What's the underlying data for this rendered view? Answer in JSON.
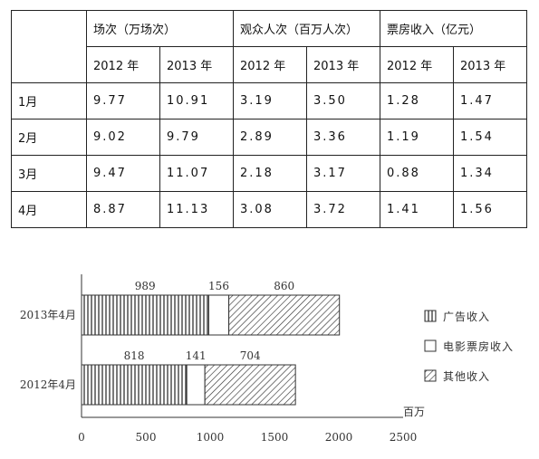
{
  "table": {
    "groups": [
      "场次（万场次）",
      "观众人次（百万人次）",
      "票房收入（亿元）"
    ],
    "years": [
      "2012 年",
      "2013 年",
      "2012 年",
      "2013 年",
      "2012 年",
      "2013 年"
    ],
    "rows": [
      {
        "month": "1月",
        "values": [
          "9.77",
          "10.91",
          "3.19",
          "3.50",
          "1.28",
          "1.47"
        ]
      },
      {
        "month": "2月",
        "values": [
          "9.02",
          "9.79",
          "2.89",
          "3.36",
          "1.19",
          "1.54"
        ]
      },
      {
        "month": "3月",
        "values": [
          "9.47",
          "11.07",
          "2.18",
          "3.17",
          "0.88",
          "1.34"
        ]
      },
      {
        "month": "4月",
        "values": [
          "8.87",
          "11.13",
          "3.08",
          "3.72",
          "1.41",
          "1.56"
        ]
      }
    ]
  },
  "chart_data": {
    "type": "bar",
    "orientation": "horizontal",
    "stacked": true,
    "categories": [
      "2013年4月",
      "2012年4月"
    ],
    "series": [
      {
        "name": "广告收入",
        "values": [
          989,
          818
        ],
        "pattern": "vertical-lines"
      },
      {
        "name": "电影票房收入",
        "values": [
          156,
          141
        ],
        "pattern": "solid-white"
      },
      {
        "name": "其他收入",
        "values": [
          860,
          704
        ],
        "pattern": "diagonal-lines"
      }
    ],
    "xlim": [
      0,
      2500
    ],
    "xticks": [
      0,
      500,
      1000,
      1500,
      2000,
      2500
    ],
    "unit_label": "百万",
    "legend_position": "right",
    "colors": {
      "stroke": "#333333",
      "fill": "#ffffff"
    }
  }
}
